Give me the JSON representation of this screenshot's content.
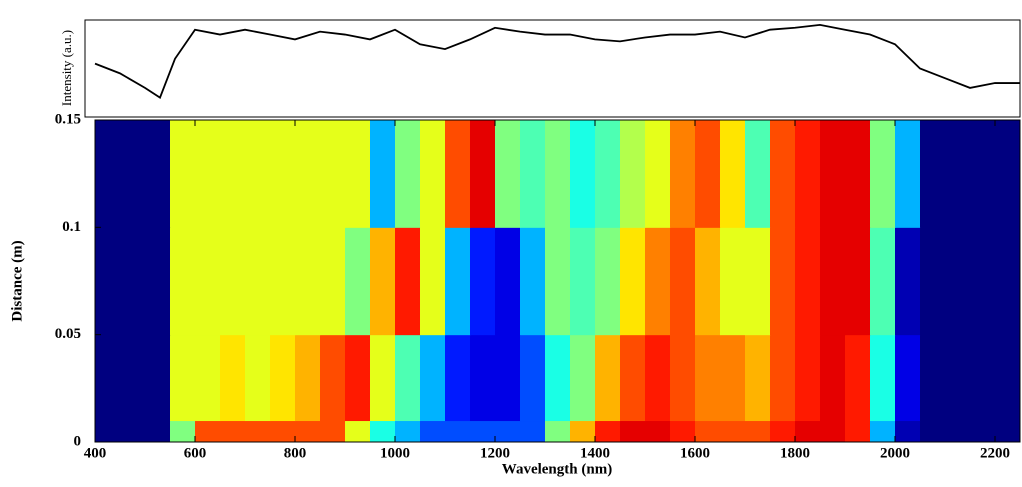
{
  "chart_data": [
    {
      "type": "line",
      "ylabel": "Intensity (a.u.)",
      "x": [
        400,
        450,
        500,
        530,
        560,
        600,
        650,
        700,
        750,
        800,
        850,
        900,
        950,
        1000,
        1050,
        1100,
        1150,
        1200,
        1250,
        1300,
        1350,
        1400,
        1450,
        1500,
        1550,
        1600,
        1650,
        1700,
        1750,
        1800,
        1850,
        1900,
        1950,
        2000,
        2050,
        2100,
        2150,
        2200,
        2250
      ],
      "series": [
        {
          "color": "#000000",
          "values": [
            0.55,
            0.45,
            0.3,
            0.2,
            0.6,
            0.9,
            0.85,
            0.9,
            0.85,
            0.8,
            0.88,
            0.85,
            0.8,
            0.9,
            0.75,
            0.7,
            0.8,
            0.92,
            0.88,
            0.85,
            0.85,
            0.8,
            0.78,
            0.82,
            0.85,
            0.85,
            0.88,
            0.82,
            0.9,
            0.92,
            0.95,
            0.9,
            0.85,
            0.75,
            0.5,
            0.4,
            0.3,
            0.35,
            0.35
          ]
        }
      ],
      "xlim": [
        400,
        2250
      ],
      "ylim": [
        0,
        1
      ]
    },
    {
      "type": "heatmap",
      "xlabel": "Wavelength (nm)",
      "ylabel": "Distance (m)",
      "x_edges": [
        400,
        450,
        500,
        550,
        600,
        650,
        700,
        750,
        800,
        850,
        900,
        950,
        1000,
        1050,
        1100,
        1150,
        1200,
        1250,
        1300,
        1350,
        1400,
        1450,
        1500,
        1550,
        1600,
        1650,
        1700,
        1750,
        1800,
        1850,
        1900,
        1950,
        2000,
        2050,
        2100,
        2150,
        2200,
        2250
      ],
      "y_edges": [
        0,
        0.01,
        0.05,
        0.1,
        0.15
      ],
      "z": [
        [
          0,
          0,
          0,
          0.5,
          0.8,
          0.8,
          0.8,
          0.8,
          0.8,
          0.8,
          0.6,
          0.4,
          0.3,
          0.2,
          0.2,
          0.2,
          0.2,
          0.2,
          0.5,
          0.7,
          0.85,
          0.9,
          0.9,
          0.85,
          0.8,
          0.8,
          0.8,
          0.85,
          0.9,
          0.9,
          0.85,
          0.3,
          0.05,
          0,
          0,
          0,
          0
        ],
        [
          0,
          0,
          0,
          0.6,
          0.6,
          0.65,
          0.6,
          0.65,
          0.7,
          0.8,
          0.85,
          0.6,
          0.45,
          0.3,
          0.15,
          0.1,
          0.1,
          0.2,
          0.4,
          0.5,
          0.7,
          0.8,
          0.85,
          0.8,
          0.75,
          0.75,
          0.7,
          0.8,
          0.85,
          0.9,
          0.85,
          0.4,
          0.1,
          0,
          0,
          0,
          0
        ],
        [
          0,
          0,
          0,
          0.6,
          0.6,
          0.6,
          0.6,
          0.6,
          0.6,
          0.6,
          0.5,
          0.7,
          0.85,
          0.6,
          0.3,
          0.15,
          0.1,
          0.3,
          0.5,
          0.45,
          0.5,
          0.65,
          0.75,
          0.8,
          0.7,
          0.6,
          0.6,
          0.8,
          0.85,
          0.9,
          0.9,
          0.45,
          0.05,
          0,
          0,
          0,
          0
        ],
        [
          0,
          0,
          0,
          0.6,
          0.6,
          0.6,
          0.6,
          0.6,
          0.6,
          0.6,
          0.6,
          0.3,
          0.5,
          0.6,
          0.8,
          0.9,
          0.5,
          0.45,
          0.5,
          0.4,
          0.45,
          0.55,
          0.6,
          0.75,
          0.8,
          0.65,
          0.45,
          0.8,
          0.85,
          0.9,
          0.9,
          0.5,
          0.3,
          0,
          0,
          0,
          0
        ]
      ],
      "xlim": [
        400,
        2250
      ],
      "ylim": [
        0,
        0.15
      ],
      "xticks": [
        400,
        600,
        800,
        1000,
        1200,
        1400,
        1600,
        1800,
        2000,
        2200
      ],
      "yticks": [
        0,
        0.05,
        0.1,
        0.15
      ]
    }
  ]
}
